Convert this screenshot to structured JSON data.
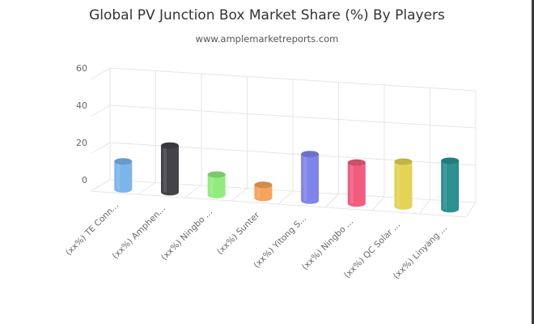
{
  "chart_data": {
    "type": "bar",
    "title": "Global PV Junction Box Market Share (%) By Players",
    "subtitle": "www.amplemarketreports.com",
    "categories": [
      "(xx%) TE Conn...",
      "(xx%) Amphen...",
      "(xx%) Ningbo ...",
      "(xx%) Sunter",
      "(xx%) Yitong S...",
      "(xx%) Ningbo ...",
      "(xx%) QC Solar ...",
      "(xx%) Linyang ..."
    ],
    "values": [
      15,
      25,
      11,
      7,
      25,
      22,
      24,
      26
    ],
    "colors": [
      "#7cb5ec",
      "#434348",
      "#90ed7d",
      "#f7a35c",
      "#8085e9",
      "#f15c80",
      "#e4d354",
      "#2b908f"
    ],
    "yticks": [
      0,
      20,
      40,
      60
    ],
    "ylim": [
      0,
      60
    ],
    "xlabel": "",
    "ylabel": "",
    "grid": true,
    "legend": "none"
  }
}
